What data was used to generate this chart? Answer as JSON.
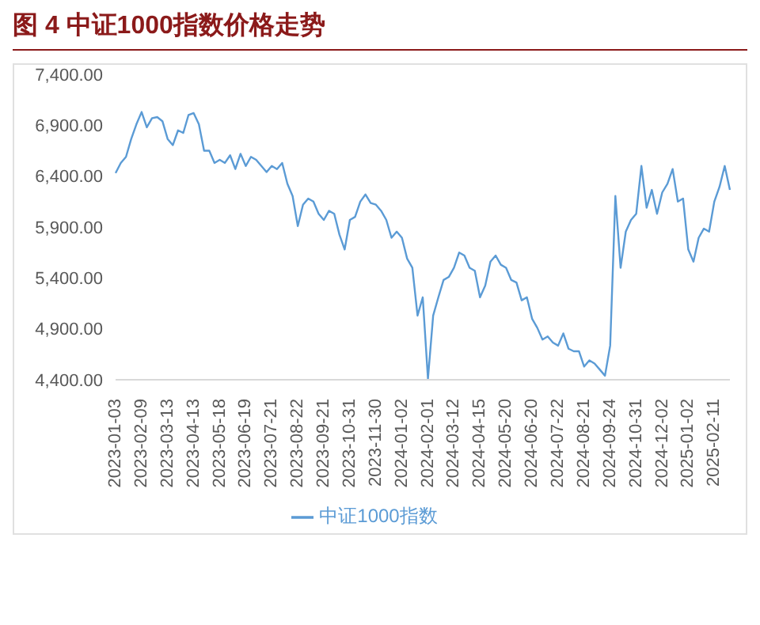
{
  "chart_data": {
    "type": "line",
    "title": "图 4 中证1000指数价格走势",
    "categories": [
      "2023-01-03",
      null,
      null,
      null,
      null,
      "2023-02-09",
      null,
      null,
      null,
      null,
      "2023-03-13",
      null,
      null,
      null,
      null,
      "2023-04-13",
      null,
      null,
      null,
      null,
      "2023-05-18",
      null,
      null,
      null,
      null,
      "2023-06-19",
      null,
      null,
      null,
      null,
      "2023-07-21",
      null,
      null,
      null,
      null,
      "2023-08-22",
      null,
      null,
      null,
      null,
      "2023-09-21",
      null,
      null,
      null,
      null,
      "2023-10-31",
      null,
      null,
      null,
      null,
      "2023-11-30",
      null,
      null,
      null,
      null,
      "2024-01-02",
      null,
      null,
      null,
      null,
      "2024-02-01",
      null,
      null,
      null,
      null,
      "2024-03-12",
      null,
      null,
      null,
      null,
      "2024-04-15",
      null,
      null,
      null,
      null,
      "2024-05-20",
      null,
      null,
      null,
      null,
      "2024-06-20",
      null,
      null,
      null,
      null,
      "2024-07-22",
      null,
      null,
      null,
      null,
      "2024-08-21",
      null,
      null,
      null,
      null,
      "2024-09-24",
      null,
      null,
      null,
      null,
      "2024-10-31",
      null,
      null,
      null,
      null,
      "2024-12-02",
      null,
      null,
      null,
      null,
      "2025-01-02",
      null,
      null,
      null,
      null,
      "2025-02-11",
      null,
      null,
      null
    ],
    "series": [
      {
        "name": "中证1000指数",
        "color": "#5b9bd5",
        "values": [
          6430,
          6530,
          6590,
          6765,
          6910,
          7030,
          6880,
          6970,
          6980,
          6940,
          6765,
          6705,
          6850,
          6825,
          7000,
          7020,
          6910,
          6650,
          6650,
          6530,
          6560,
          6530,
          6605,
          6470,
          6620,
          6500,
          6590,
          6560,
          6500,
          6440,
          6500,
          6470,
          6530,
          6325,
          6205,
          5910,
          6120,
          6180,
          6150,
          6030,
          5970,
          6060,
          6030,
          5825,
          5680,
          5970,
          6000,
          6150,
          6220,
          6136,
          6120,
          6060,
          5970,
          5795,
          5855,
          5795,
          5590,
          5500,
          5030,
          5210,
          4410,
          5030,
          5210,
          5380,
          5410,
          5500,
          5650,
          5620,
          5500,
          5470,
          5210,
          5325,
          5560,
          5620,
          5530,
          5500,
          5380,
          5355,
          5180,
          5210,
          5000,
          4910,
          4795,
          4825,
          4765,
          4735,
          4855,
          4705,
          4680,
          4680,
          4530,
          4590,
          4560,
          4500,
          4440,
          4735,
          6205,
          5500,
          5855,
          5970,
          6030,
          6500,
          6090,
          6265,
          6030,
          6240,
          6325,
          6470,
          6150,
          6180,
          5680,
          5560,
          5795,
          5885,
          5855,
          6150,
          6295,
          6500,
          6265
        ]
      }
    ],
    "ylim": [
      4400,
      7400
    ],
    "yticks": [
      {
        "value": 4400,
        "label": "4,400.00"
      },
      {
        "value": 4900,
        "label": "4,900.00"
      },
      {
        "value": 5400,
        "label": "5,400.00"
      },
      {
        "value": 5900,
        "label": "5,900.00"
      },
      {
        "value": 6400,
        "label": "6,400.00"
      },
      {
        "value": 6900,
        "label": "6,900.00"
      },
      {
        "value": 7400,
        "label": "7,400.00"
      }
    ],
    "grid": false,
    "legend": "bottom",
    "marker": "none",
    "line_style": "solid"
  }
}
